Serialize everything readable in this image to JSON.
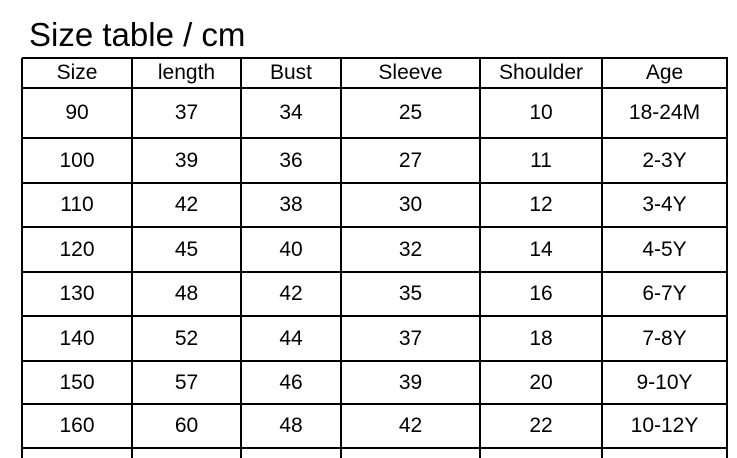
{
  "title": "Size table / cm",
  "table": {
    "headers": [
      "Size",
      "length",
      "Bust",
      "Sleeve",
      "Shoulder",
      "Age"
    ],
    "rows": [
      [
        "90",
        "37",
        "34",
        "25",
        "10",
        "18-24M"
      ],
      [
        "100",
        "39",
        "36",
        "27",
        "11",
        "2-3Y"
      ],
      [
        "110",
        "42",
        "38",
        "30",
        "12",
        "3-4Y"
      ],
      [
        "120",
        "45",
        "40",
        "32",
        "14",
        "4-5Y"
      ],
      [
        "130",
        "48",
        "42",
        "35",
        "16",
        "6-7Y"
      ],
      [
        "140",
        "52",
        "44",
        "37",
        "18",
        "7-8Y"
      ],
      [
        "150",
        "57",
        "46",
        "39",
        "20",
        "9-10Y"
      ],
      [
        "160",
        "60",
        "48",
        "42",
        "22",
        "10-12Y"
      ]
    ]
  }
}
